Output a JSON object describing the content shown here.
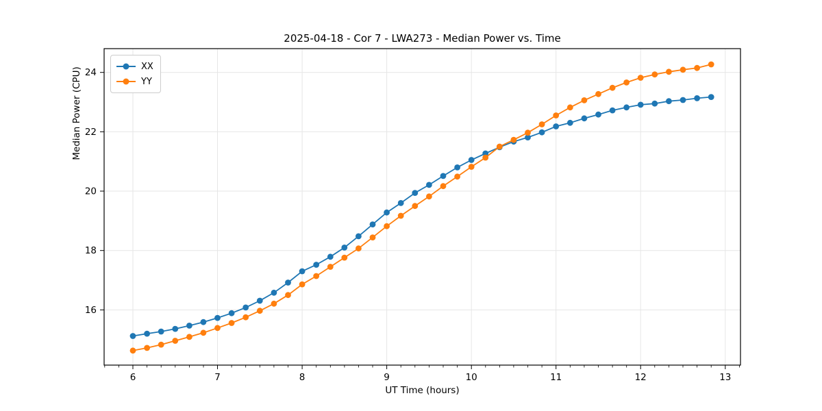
{
  "figure": {
    "background": "#ffffff",
    "title": "2025-04-18 - Cor 7 - LWA273 - Median Power vs. Time"
  },
  "chart_data": {
    "type": "line",
    "title": "2025-04-18 - Cor 7 - LWA273 - Median Power vs. Time",
    "xlabel": "UT Time (hours)",
    "ylabel": "Median Power (CPU)",
    "xlim": [
      5.66,
      13.18
    ],
    "ylim": [
      14.14,
      24.8
    ],
    "x_ticks": [
      6,
      7,
      8,
      9,
      10,
      11,
      12,
      13
    ],
    "y_ticks": [
      16,
      18,
      20,
      22,
      24
    ],
    "minor_tick_step_x": 0.16667,
    "grid": true,
    "grid_color": "#e6e6e6",
    "legend_position": "upper left",
    "x": [
      6.0,
      6.1667,
      6.3333,
      6.5,
      6.6667,
      6.8333,
      7.0,
      7.1667,
      7.3333,
      7.5,
      7.6667,
      7.8333,
      8.0,
      8.1667,
      8.3333,
      8.5,
      8.6667,
      8.8333,
      9.0,
      9.1667,
      9.3333,
      9.5,
      9.6667,
      9.8333,
      10.0,
      10.1667,
      10.3333,
      10.5,
      10.6667,
      10.8333,
      11.0,
      11.1667,
      11.3333,
      11.5,
      11.6667,
      11.8333,
      12.0,
      12.1667,
      12.3333,
      12.5,
      12.6667,
      12.8333
    ],
    "series": [
      {
        "name": "XX",
        "color": "#1f77b4",
        "values": [
          15.12,
          15.2,
          15.27,
          15.36,
          15.47,
          15.59,
          15.73,
          15.89,
          16.08,
          16.31,
          16.58,
          16.92,
          17.3,
          17.52,
          17.79,
          18.1,
          18.48,
          18.88,
          19.28,
          19.6,
          19.94,
          20.21,
          20.51,
          20.8,
          21.05,
          21.27,
          21.48,
          21.67,
          21.81,
          21.98,
          22.18,
          22.3,
          22.45,
          22.58,
          22.72,
          22.82,
          22.91,
          22.95,
          23.03,
          23.07,
          23.13,
          23.17
        ]
      },
      {
        "name": "YY",
        "color": "#ff7f0e",
        "values": [
          14.63,
          14.72,
          14.83,
          14.96,
          15.09,
          15.23,
          15.39,
          15.56,
          15.75,
          15.97,
          16.21,
          16.5,
          16.86,
          17.14,
          17.45,
          17.76,
          18.07,
          18.44,
          18.82,
          19.17,
          19.5,
          19.82,
          20.17,
          20.49,
          20.82,
          21.13,
          21.5,
          21.73,
          21.97,
          22.25,
          22.55,
          22.82,
          23.06,
          23.27,
          23.48,
          23.66,
          23.82,
          23.93,
          24.02,
          24.09,
          24.15,
          24.27
        ]
      }
    ]
  },
  "legend": {
    "items": [
      {
        "label": "XX",
        "color": "#1f77b4"
      },
      {
        "label": "YY",
        "color": "#ff7f0e"
      }
    ]
  }
}
